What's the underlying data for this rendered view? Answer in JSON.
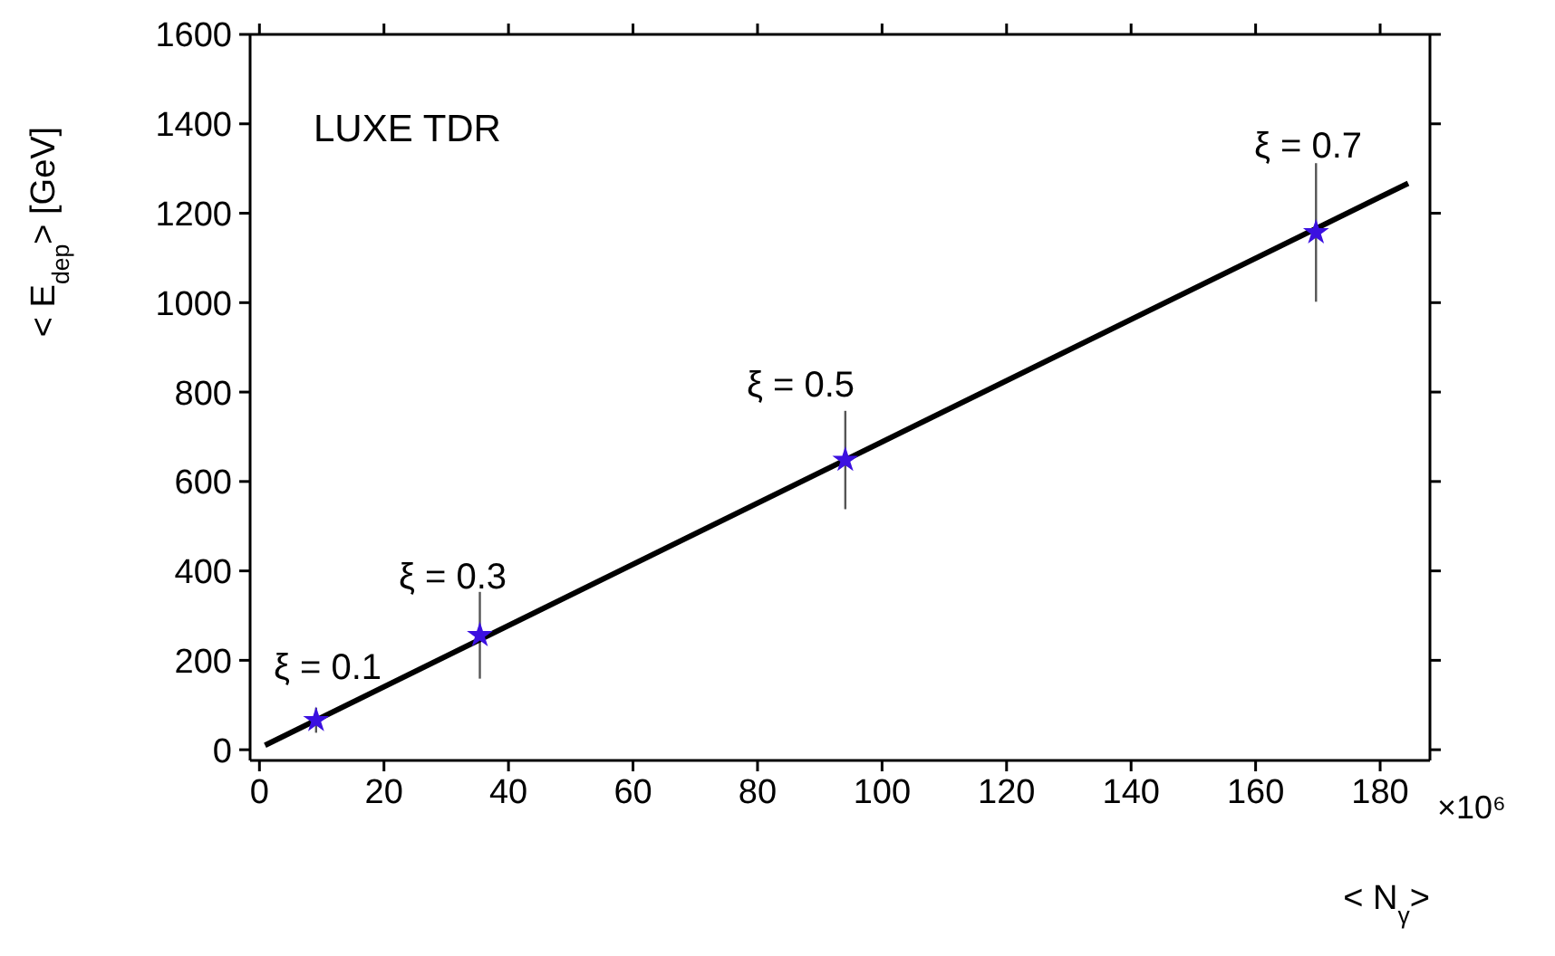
{
  "chart_data": {
    "type": "scatter",
    "xlabel": "< N$_{γ}$>",
    "ylabel": "< E$_{dep}$> [GeV]",
    "xlim": [
      -1.5,
      188
    ],
    "ylim": [
      -24,
      1600
    ],
    "xticks": [
      0,
      20,
      40,
      60,
      80,
      100,
      120,
      140,
      160,
      180
    ],
    "yticks": [
      0,
      200,
      400,
      600,
      800,
      1000,
      1200,
      1400,
      1600
    ],
    "series": [
      {
        "color": "#3b10e0",
        "marker": "star",
        "x": [
          9.1,
          35.4,
          94.1,
          169.7
        ],
        "values": [
          66,
          256,
          648,
          1157
        ],
        "errors": [
          28,
          97,
          110,
          155
        ]
      },
      {
        "type": "line",
        "color": "#000000",
        "marker": "none",
        "x": [
          0.9,
          184.5
        ],
        "values": [
          10,
          1267
        ]
      }
    ],
    "annotations": [
      "LUXE TDR",
      "×10⁶",
      "ξ = 0.1",
      "ξ = 0.3",
      "ξ = 0.5",
      "ξ = 0.7"
    ]
  }
}
